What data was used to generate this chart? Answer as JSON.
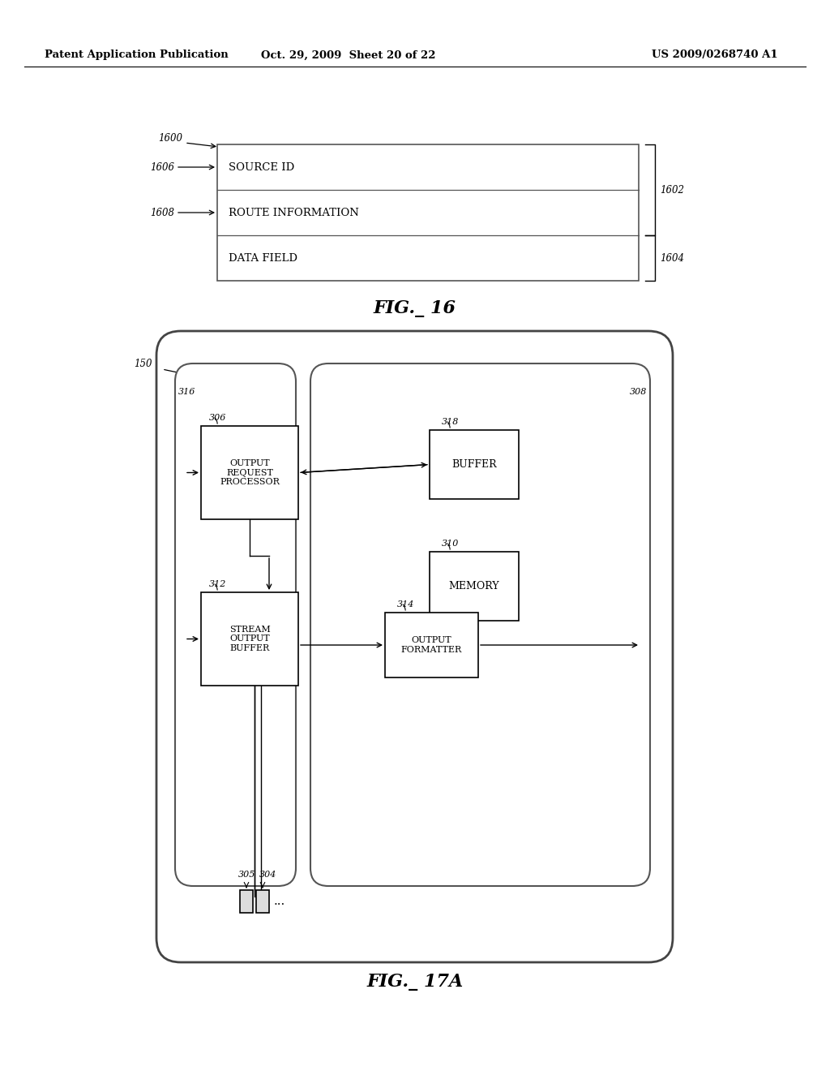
{
  "bg_color": "#ffffff",
  "header_left": "Patent Application Publication",
  "header_mid": "Oct. 29, 2009  Sheet 20 of 22",
  "header_right": "US 2009/0268740 A1",
  "fig16_title": "FIG._ 16",
  "fig17_title": "FIG._ 17A",
  "fig16": {
    "label_1600": "1600",
    "label_1606": "1606",
    "label_1608": "1608",
    "label_1602": "1602",
    "label_1604": "1604",
    "row1_text": "SOURCE ID",
    "row2_text": "ROUTE INFORMATION",
    "row3_text": "DATA FIELD"
  },
  "fig17": {
    "label_150": "150",
    "label_316": "316",
    "label_306": "306",
    "label_308": "308",
    "label_318": "318",
    "label_310": "310",
    "label_312": "312",
    "label_314": "314",
    "label_305": "305",
    "label_304": "304",
    "box_306_text": "OUTPUT\nREQUEST\nPROCESSOR",
    "box_318_text": "BUFFER",
    "box_310_text": "MEMORY",
    "box_312_text": "STREAM\nOUTPUT\nBUFFER",
    "box_314_text": "OUTPUT\nFORMATTER"
  }
}
